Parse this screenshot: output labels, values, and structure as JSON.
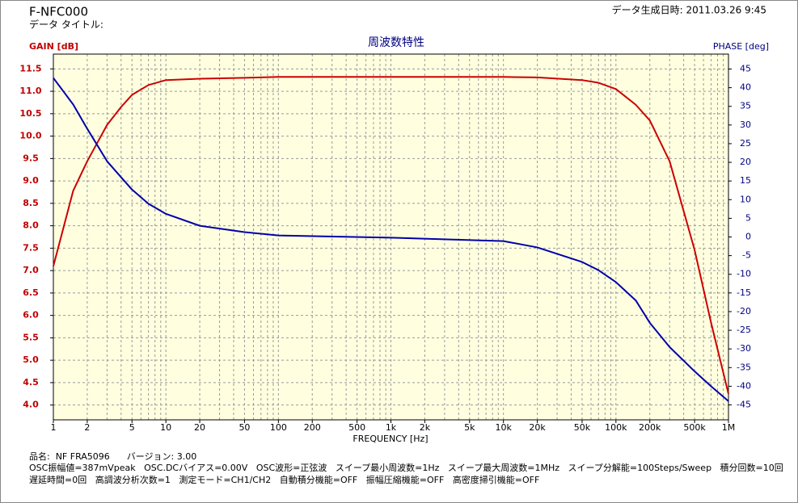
{
  "header": {
    "id": "F-NFC000",
    "data_title": "データ タイトル:",
    "timestamp": "データ生成日時: 2011.03.26 9:45"
  },
  "footer": {
    "lines": [
      "品名:  NF FRA5096      バージョン: 3.00",
      "OSC振幅値=387mVpeak   OSC.DCバイアス=0.00V   OSC波形=正弦波   スイープ最小周波数=1Hz   スイープ最大周波数=1MHz   スイープ分解能=100Steps/Sweep   積分回数=10回",
      "遅延時間=0回   高調波分析次数=1   測定モード=CH1/CH2   自動積分機能=OFF   振幅圧縮機能=OFF   高密度掃引機能=OFF"
    ]
  },
  "chart_data": {
    "type": "line",
    "title": "周波数特性",
    "x_label": "FREQUENCY [Hz]",
    "y_label": "GAIN [dB]",
    "y2_label": "PHASE [deg]",
    "x_log": true,
    "grid": true,
    "xlim": [
      1,
      1000000
    ],
    "xticks": [
      1,
      2,
      5,
      10,
      20,
      50,
      100,
      200,
      500,
      {
        "value": 1000,
        "label": "1k"
      },
      {
        "value": 2000,
        "label": "2k"
      },
      {
        "value": 5000,
        "label": "5k"
      },
      {
        "value": 10000,
        "label": "10k"
      },
      {
        "value": 20000,
        "label": "20k"
      },
      {
        "value": 50000,
        "label": "50k"
      },
      {
        "value": 100000,
        "label": "100k"
      },
      {
        "value": 200000,
        "label": "200k"
      },
      {
        "value": 500000,
        "label": "500k"
      },
      {
        "value": 1000000,
        "label": "1M"
      }
    ],
    "xgrid": [
      1,
      2,
      3,
      4,
      5,
      6,
      7,
      8,
      9,
      10,
      20,
      30,
      40,
      50,
      60,
      70,
      80,
      90,
      100,
      200,
      300,
      400,
      500,
      600,
      700,
      800,
      900,
      1000,
      2000,
      3000,
      4000,
      5000,
      6000,
      7000,
      8000,
      9000,
      10000,
      20000,
      30000,
      40000,
      50000,
      60000,
      70000,
      80000,
      90000,
      100000,
      200000,
      300000,
      400000,
      500000,
      600000,
      700000,
      800000,
      900000,
      1000000
    ],
    "ylim": [
      3.67,
      11.83
    ],
    "yticks": [
      {
        "value": 4,
        "label": "4.0"
      },
      4.5,
      {
        "value": 5,
        "label": "5.0"
      },
      5.5,
      {
        "value": 6,
        "label": "6.0"
      },
      6.5,
      {
        "value": 7,
        "label": "7.0"
      },
      7.5,
      {
        "value": 8,
        "label": "8.0"
      },
      8.5,
      {
        "value": 9,
        "label": "9.0"
      },
      9.5,
      {
        "value": 10,
        "label": "10.0"
      },
      10.5,
      {
        "value": 11,
        "label": "11.0"
      },
      11.5
    ],
    "y2lim": [
      -49,
      49
    ],
    "y2ticks": [
      -45,
      -40,
      -35,
      -30,
      -25,
      -20,
      -15,
      -10,
      -5,
      0,
      5,
      10,
      15,
      20,
      25,
      30,
      35,
      40,
      45
    ],
    "x": [
      1,
      1.5,
      2,
      3,
      4,
      5,
      7,
      10,
      20,
      50,
      100,
      1000,
      10000,
      20000,
      50000,
      70000,
      100000,
      150000,
      200000,
      300000,
      500000,
      700000,
      1000000
    ],
    "series": [
      {
        "name": "GAIN",
        "color": "#cc0000",
        "values": [
          7.1,
          8.78,
          9.44,
          10.25,
          10.65,
          10.92,
          11.14,
          11.25,
          11.28,
          11.3,
          11.32,
          11.32,
          11.32,
          11.31,
          11.25,
          11.19,
          11.05,
          10.7,
          10.35,
          9.44,
          7.46,
          5.84,
          4.25
        ]
      },
      {
        "name": "PHASE",
        "color": "#0000aa",
        "axis": "y2",
        "values": [
          42.6,
          35.5,
          29.0,
          20.3,
          16.0,
          12.7,
          8.9,
          6.2,
          3.0,
          1.3,
          0.4,
          -0.2,
          -1.1,
          -2.8,
          -6.7,
          -8.9,
          -12.1,
          -17.0,
          -23.0,
          -29.5,
          -36.0,
          -40.0,
          -44.0
        ]
      }
    ]
  }
}
